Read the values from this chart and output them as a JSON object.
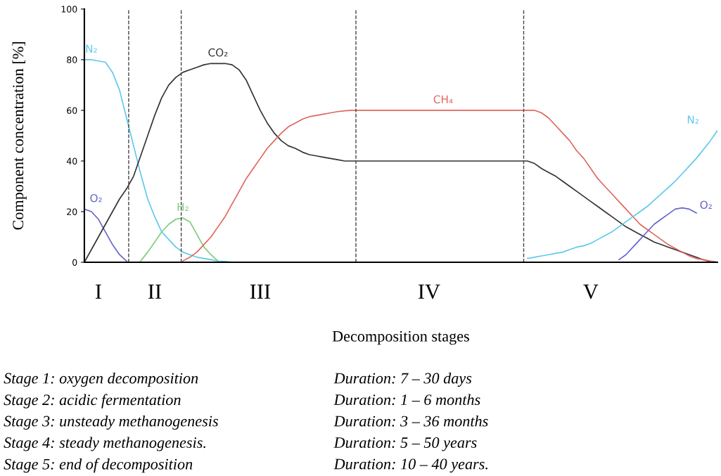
{
  "chart_data": {
    "type": "line",
    "xlabel": "Decomposition stages",
    "ylabel": "Component concentration [%]",
    "categories": [
      null,
      null,
      "I",
      null,
      null,
      null,
      null,
      null,
      null,
      null,
      "II",
      null,
      null,
      null,
      null,
      null,
      null,
      null,
      null,
      null,
      null,
      null,
      null,
      null,
      null,
      "III",
      null,
      null,
      null,
      null,
      null,
      null,
      null,
      null,
      null,
      null,
      null,
      null,
      null,
      null,
      null,
      null,
      null,
      null,
      null,
      null,
      null,
      null,
      null,
      "IV",
      null,
      null,
      null,
      null,
      null,
      null,
      null,
      null,
      null,
      null,
      null,
      null,
      null,
      null,
      null,
      null,
      null,
      null,
      null,
      null,
      null,
      null,
      "V",
      null,
      null,
      null,
      null,
      null,
      null,
      null,
      null,
      null,
      null,
      null,
      null,
      null,
      null,
      null,
      null,
      null,
      null
    ],
    "ylim": [
      0,
      100
    ],
    "yticks": [
      0,
      20,
      40,
      60,
      80,
      100
    ],
    "grid": false,
    "legend": false,
    "marker": "none",
    "line_style": "solid",
    "series": [
      {
        "name": "N₂",
        "color": "#5ec8ee",
        "values": [
          80,
          80,
          79.5,
          79,
          75,
          68,
          57,
          46,
          35,
          25,
          18,
          12,
          9,
          6,
          4,
          3,
          2,
          1.5,
          1,
          0.5,
          0.3,
          0,
          null,
          null,
          null,
          null,
          null,
          null,
          null,
          null,
          null,
          null,
          null,
          null,
          null,
          null,
          null,
          null,
          null,
          null,
          null,
          null,
          null,
          null,
          null,
          null,
          null,
          null,
          null,
          null,
          null,
          null,
          null,
          null,
          null,
          null,
          null,
          null,
          null,
          null,
          null,
          null,
          null,
          null,
          null,
          null,
          null,
          null,
          null,
          null,
          null,
          null,
          null,
          null,
          null,
          null,
          null,
          null,
          null,
          null,
          null,
          null,
          null,
          null,
          null,
          null,
          null,
          null,
          null,
          null,
          null
        ]
      },
      {
        "name": "O₂",
        "color": "#6666cc",
        "values": [
          21,
          20,
          17,
          12,
          7,
          3,
          0.5,
          null,
          null,
          null,
          null,
          null,
          null,
          null,
          null,
          null,
          null,
          null,
          null,
          null,
          null,
          null,
          null,
          null,
          null,
          null,
          null,
          null,
          null,
          null,
          null,
          null,
          null,
          null,
          null,
          null,
          null,
          null,
          null,
          null,
          null,
          null,
          null,
          null,
          null,
          null,
          null,
          null,
          null,
          null,
          null,
          null,
          null,
          null,
          null,
          null,
          null,
          null,
          null,
          null,
          null,
          null,
          null,
          null,
          null,
          null,
          null,
          null,
          null,
          null,
          null,
          null,
          null,
          null,
          null,
          null,
          null,
          null,
          null,
          null,
          null,
          null,
          null,
          null,
          null,
          null,
          null,
          null,
          null,
          null,
          null
        ]
      },
      {
        "name": "CO₂",
        "color": "#333333",
        "values": [
          0,
          5,
          10,
          15,
          20,
          25,
          29,
          34,
          42,
          50,
          58,
          65,
          70,
          73,
          75,
          76,
          77,
          78,
          78.5,
          78.5,
          78.5,
          78,
          76,
          72,
          66,
          60,
          55,
          51,
          48,
          46,
          45,
          43.5,
          42.5,
          42,
          41.5,
          41,
          40.5,
          40,
          40,
          40,
          40,
          40,
          40,
          40,
          40,
          40,
          40,
          40,
          40,
          40,
          40,
          40,
          40,
          40,
          40,
          40,
          40,
          40,
          40,
          40,
          40,
          40,
          40,
          40,
          39,
          37,
          35.5,
          34,
          32,
          30,
          28,
          26,
          24,
          22,
          20,
          18,
          16,
          14,
          12.5,
          11,
          9.5,
          8,
          7,
          6,
          5,
          4,
          3,
          2,
          1,
          0.3,
          0
        ]
      },
      {
        "name": "H₂",
        "color": "#7dcc7d",
        "values": [
          null,
          null,
          null,
          null,
          null,
          null,
          null,
          null,
          0.5,
          4,
          8,
          12,
          15,
          17,
          17.5,
          16,
          11,
          6,
          3,
          0.5,
          null,
          null,
          null,
          null,
          null,
          null,
          null,
          null,
          null,
          null,
          null,
          null,
          null,
          null,
          null,
          null,
          null,
          null,
          null,
          null,
          null,
          null,
          null,
          null,
          null,
          null,
          null,
          null,
          null,
          null,
          null,
          null,
          null,
          null,
          null,
          null,
          null,
          null,
          null,
          null,
          null,
          null,
          null,
          null,
          null,
          null,
          null,
          null,
          null,
          null,
          null,
          null,
          null,
          null,
          null,
          null,
          null,
          null,
          null,
          null,
          null,
          null,
          null,
          null,
          null,
          null,
          null,
          null,
          null,
          null,
          null
        ]
      },
      {
        "name": "CH₄",
        "color": "#e0665e",
        "values": [
          null,
          null,
          null,
          null,
          null,
          null,
          null,
          null,
          null,
          null,
          null,
          null,
          null,
          null,
          0.5,
          2,
          4,
          7,
          10,
          14,
          18,
          23,
          28,
          33,
          37,
          41,
          45,
          48,
          51,
          53.5,
          55,
          56.5,
          57.5,
          58,
          58.5,
          59,
          59.5,
          59.8,
          60,
          60,
          60,
          60,
          60,
          60,
          60,
          60,
          60,
          60,
          60,
          60,
          60,
          60,
          60,
          60,
          60,
          60,
          60,
          60,
          60,
          60,
          60,
          60,
          60,
          60,
          60,
          59,
          57,
          54,
          51,
          48,
          44,
          41,
          37,
          33,
          30,
          27,
          24,
          21,
          18,
          15,
          13,
          11,
          9,
          7,
          5.5,
          4,
          2.5,
          1.5,
          1,
          0.5,
          0
        ]
      },
      {
        "name": "N₂",
        "color": "#5ec8ee",
        "values": [
          null,
          null,
          null,
          null,
          null,
          null,
          null,
          null,
          null,
          null,
          null,
          null,
          null,
          null,
          null,
          null,
          null,
          null,
          null,
          null,
          null,
          null,
          null,
          null,
          null,
          null,
          null,
          null,
          null,
          null,
          null,
          null,
          null,
          null,
          null,
          null,
          null,
          null,
          null,
          null,
          null,
          null,
          null,
          null,
          null,
          null,
          null,
          null,
          null,
          null,
          null,
          null,
          null,
          null,
          null,
          null,
          null,
          null,
          null,
          null,
          null,
          null,
          null,
          1.5,
          2,
          2.5,
          3,
          3.5,
          4,
          5,
          6,
          6.5,
          7.5,
          9,
          10.5,
          12,
          14,
          16,
          18,
          20,
          22,
          24.5,
          27,
          29.5,
          32,
          35,
          38,
          41,
          44.5,
          48,
          52
        ]
      },
      {
        "name": "O₂",
        "color": "#6666cc",
        "values": [
          null,
          null,
          null,
          null,
          null,
          null,
          null,
          null,
          null,
          null,
          null,
          null,
          null,
          null,
          null,
          null,
          null,
          null,
          null,
          null,
          null,
          null,
          null,
          null,
          null,
          null,
          null,
          null,
          null,
          null,
          null,
          null,
          null,
          null,
          null,
          null,
          null,
          null,
          null,
          null,
          null,
          null,
          null,
          null,
          null,
          null,
          null,
          null,
          null,
          null,
          null,
          null,
          null,
          null,
          null,
          null,
          null,
          null,
          null,
          null,
          null,
          null,
          null,
          null,
          null,
          null,
          null,
          null,
          null,
          null,
          null,
          null,
          null,
          null,
          null,
          null,
          1,
          3,
          6,
          9,
          12,
          15,
          17,
          19,
          21,
          21.5,
          21,
          19.5,
          null,
          null,
          null
        ]
      }
    ],
    "annotations": [
      "Stage 1: oxygen decomposition",
      "Stage 2: acidic fermentation",
      "Stage 3: unsteady methanogenesis",
      "Stage 4: steady methanogenesis.",
      "Stage 5: end of decomposition",
      "Duration: 7 – 30 days",
      "Duration: 1 – 6 months",
      "Duration: 3 – 36 months",
      "Duration: 5 – 50 years",
      "Duration: 10 – 40 years."
    ]
  }
}
